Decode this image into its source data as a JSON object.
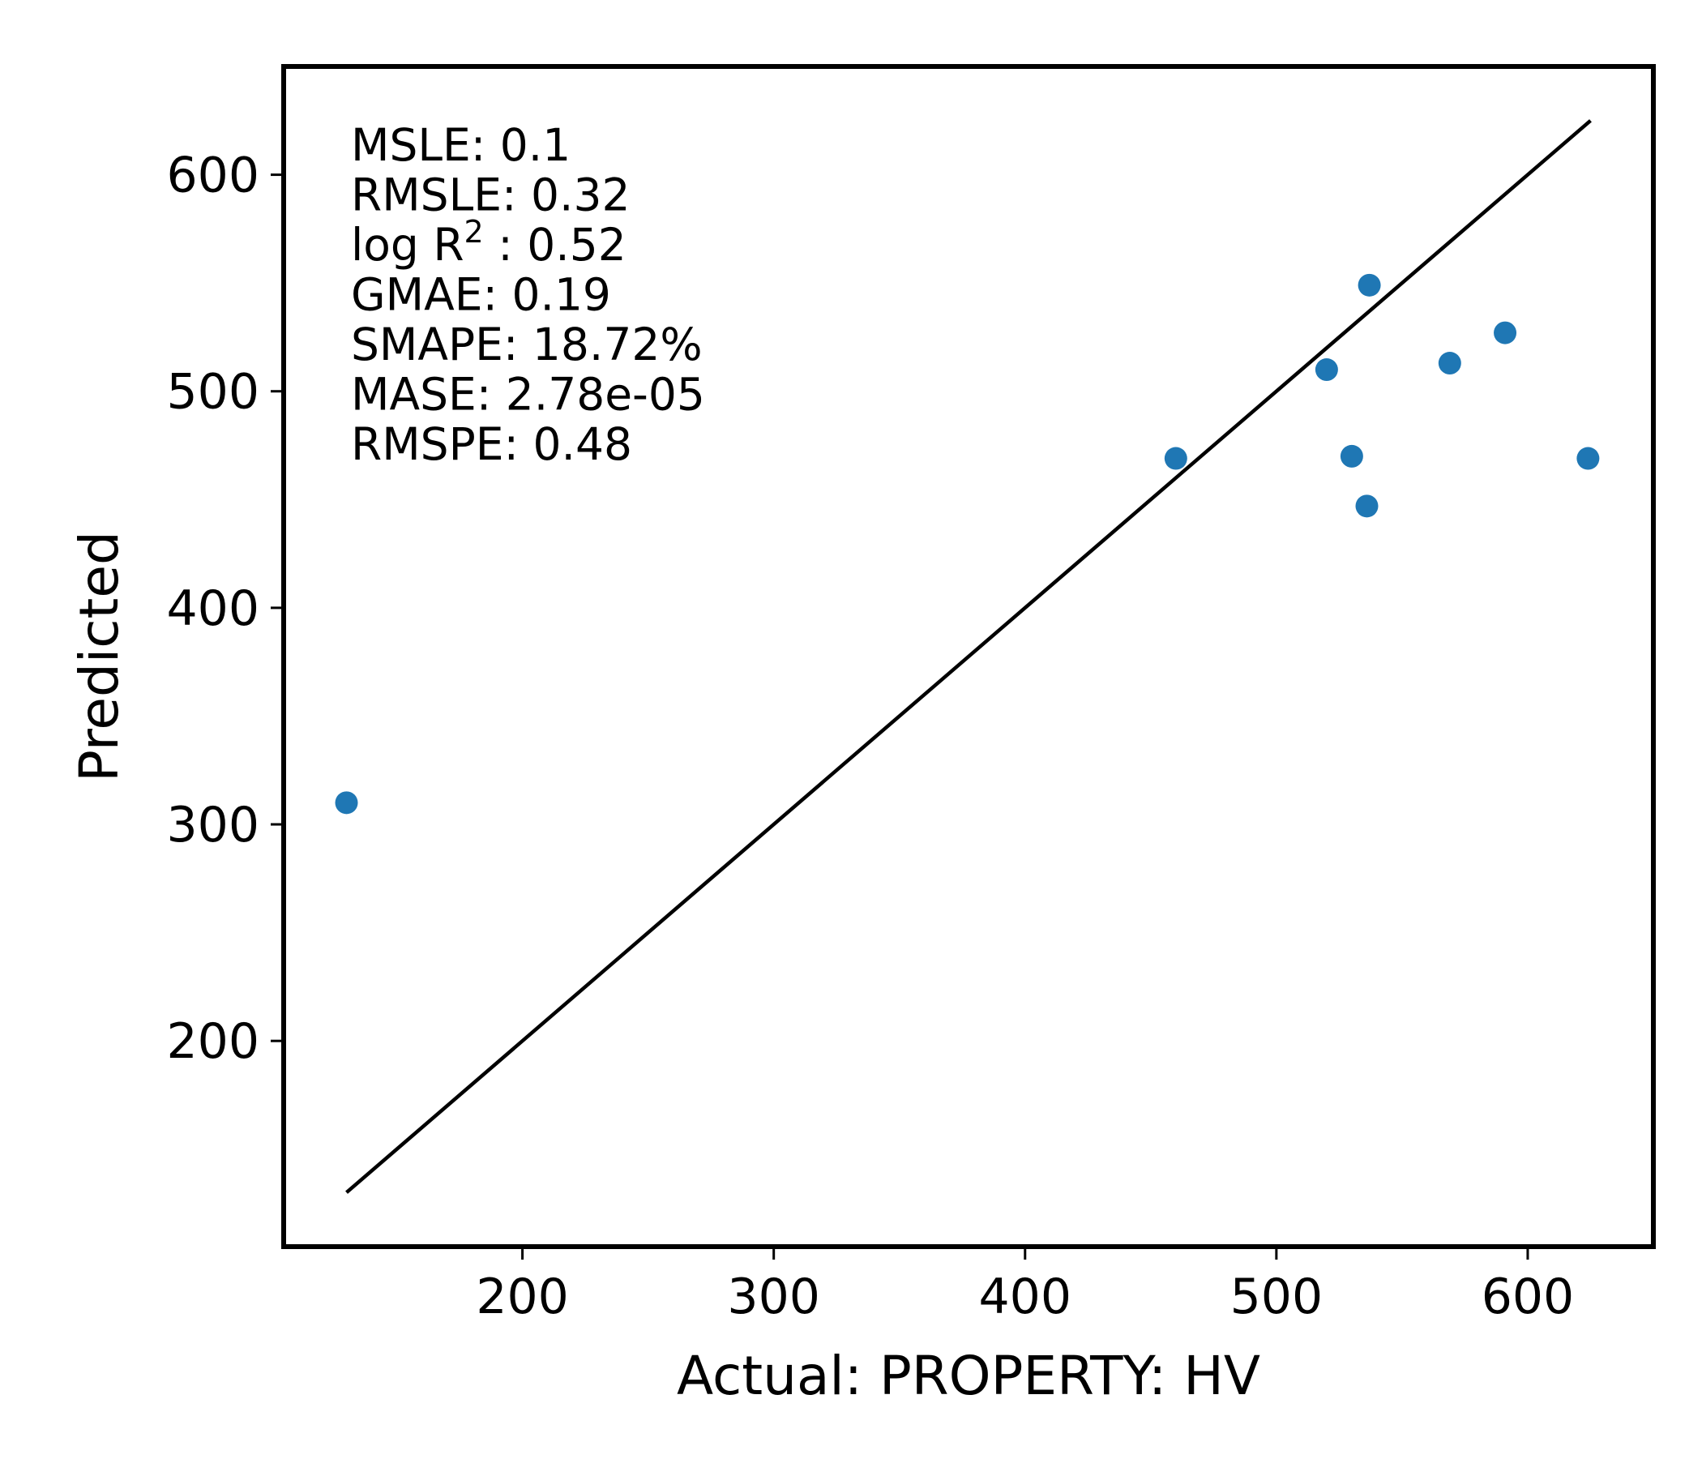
{
  "chart_data": {
    "type": "scatter",
    "title": "",
    "xlabel": "Actual: PROPERTY: HV",
    "ylabel": "Predicted",
    "xlim": [
      105,
      650
    ],
    "ylim": [
      105,
      650
    ],
    "x_ticks": [
      200,
      300,
      400,
      500,
      600
    ],
    "y_ticks": [
      200,
      300,
      400,
      500,
      600
    ],
    "grid": false,
    "marker_color": "#1f77b4",
    "line_color": "#000000",
    "identity_line": {
      "x": [
        130,
        625
      ],
      "y": [
        130,
        625
      ]
    },
    "points": [
      {
        "x": 130,
        "y": 310
      },
      {
        "x": 460,
        "y": 469
      },
      {
        "x": 520,
        "y": 510
      },
      {
        "x": 530,
        "y": 470
      },
      {
        "x": 536,
        "y": 447
      },
      {
        "x": 537,
        "y": 549
      },
      {
        "x": 569,
        "y": 513
      },
      {
        "x": 591,
        "y": 527
      },
      {
        "x": 624,
        "y": 469
      }
    ],
    "annotations": [
      {
        "label": "MSLE",
        "value": "0.1"
      },
      {
        "label": "RMSLE",
        "value": "0.32"
      },
      {
        "label": "log R",
        "sup": "2",
        "sep": " : ",
        "value": "0.52"
      },
      {
        "label": "GMAE",
        "value": "0.19"
      },
      {
        "label": "SMAPE",
        "value": "18.72%"
      },
      {
        "label": "MASE",
        "value": "2.78e-05"
      },
      {
        "label": "RMSPE",
        "value": "0.48"
      }
    ]
  }
}
